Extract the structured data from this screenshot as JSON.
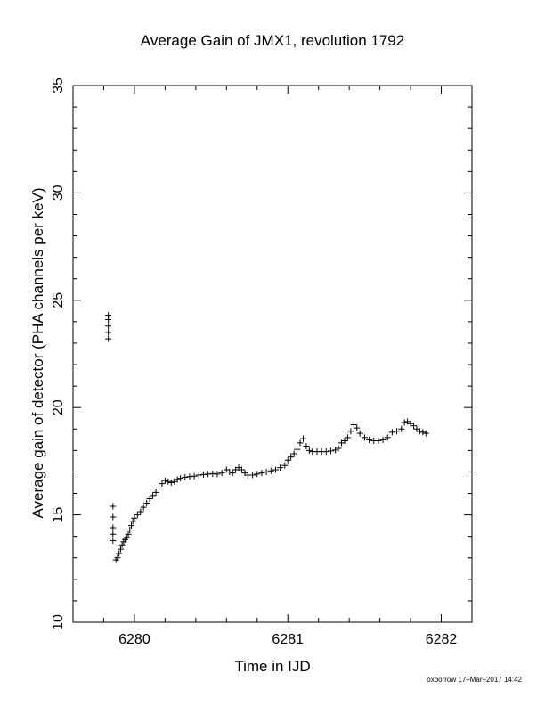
{
  "footer": {
    "stamp": "oxborrow 17–Mar–2017 14:42"
  },
  "chart_data": {
    "type": "scatter",
    "title": "Average Gain of JMX1, revolution 1792",
    "xlabel": "Time in IJD",
    "ylabel": "Average gain of detector (PHA channels per keV)",
    "xlim": [
      6279.6,
      6282.2
    ],
    "ylim": [
      10,
      35
    ],
    "xticks": [
      6280,
      6281,
      6282
    ],
    "yticks": [
      10,
      15,
      20,
      25,
      30,
      35
    ],
    "marker": "+",
    "grid": false,
    "color": "#000000",
    "points": [
      [
        6279.83,
        24.3
      ],
      [
        6279.83,
        24.1
      ],
      [
        6279.83,
        23.8
      ],
      [
        6279.83,
        23.5
      ],
      [
        6279.83,
        23.2
      ],
      [
        6279.86,
        15.4
      ],
      [
        6279.86,
        14.9
      ],
      [
        6279.86,
        14.4
      ],
      [
        6279.86,
        14.1
      ],
      [
        6279.86,
        13.8
      ],
      [
        6279.88,
        12.9
      ],
      [
        6279.89,
        13.0
      ],
      [
        6279.9,
        13.2
      ],
      [
        6279.91,
        13.4
      ],
      [
        6279.92,
        13.6
      ],
      [
        6279.93,
        13.75
      ],
      [
        6279.94,
        13.85
      ],
      [
        6279.95,
        13.95
      ],
      [
        6279.96,
        14.1
      ],
      [
        6279.97,
        14.3
      ],
      [
        6279.98,
        14.5
      ],
      [
        6279.99,
        14.7
      ],
      [
        6280.0,
        14.85
      ],
      [
        6280.02,
        15.0
      ],
      [
        6280.04,
        15.15
      ],
      [
        6280.06,
        15.35
      ],
      [
        6280.08,
        15.55
      ],
      [
        6280.1,
        15.75
      ],
      [
        6280.12,
        15.9
      ],
      [
        6280.14,
        16.05
      ],
      [
        6280.16,
        16.25
      ],
      [
        6280.18,
        16.45
      ],
      [
        6280.2,
        16.6
      ],
      [
        6280.22,
        16.55
      ],
      [
        6280.24,
        16.5
      ],
      [
        6280.26,
        16.55
      ],
      [
        6280.28,
        16.65
      ],
      [
        6280.3,
        16.7
      ],
      [
        6280.33,
        16.75
      ],
      [
        6280.36,
        16.78
      ],
      [
        6280.39,
        16.8
      ],
      [
        6280.42,
        16.85
      ],
      [
        6280.45,
        16.88
      ],
      [
        6280.48,
        16.9
      ],
      [
        6280.51,
        16.92
      ],
      [
        6280.54,
        16.9
      ],
      [
        6280.57,
        16.95
      ],
      [
        6280.6,
        17.1
      ],
      [
        6280.62,
        17.0
      ],
      [
        6280.64,
        16.95
      ],
      [
        6280.66,
        17.1
      ],
      [
        6280.68,
        17.2
      ],
      [
        6280.7,
        17.1
      ],
      [
        6280.72,
        16.95
      ],
      [
        6280.74,
        16.85
      ],
      [
        6280.77,
        16.85
      ],
      [
        6280.8,
        16.9
      ],
      [
        6280.83,
        16.95
      ],
      [
        6280.86,
        17.0
      ],
      [
        6280.89,
        17.05
      ],
      [
        6280.92,
        17.1
      ],
      [
        6280.95,
        17.2
      ],
      [
        6280.98,
        17.3
      ],
      [
        6281.0,
        17.55
      ],
      [
        6281.02,
        17.7
      ],
      [
        6281.04,
        17.85
      ],
      [
        6281.06,
        18.05
      ],
      [
        6281.08,
        18.35
      ],
      [
        6281.1,
        18.55
      ],
      [
        6281.12,
        18.2
      ],
      [
        6281.14,
        18.0
      ],
      [
        6281.16,
        17.95
      ],
      [
        6281.19,
        17.95
      ],
      [
        6281.22,
        17.95
      ],
      [
        6281.25,
        17.95
      ],
      [
        6281.28,
        17.98
      ],
      [
        6281.31,
        18.02
      ],
      [
        6281.33,
        18.1
      ],
      [
        6281.35,
        18.35
      ],
      [
        6281.37,
        18.45
      ],
      [
        6281.39,
        18.6
      ],
      [
        6281.41,
        18.9
      ],
      [
        6281.43,
        19.2
      ],
      [
        6281.45,
        19.05
      ],
      [
        6281.47,
        18.8
      ],
      [
        6281.5,
        18.6
      ],
      [
        6281.53,
        18.5
      ],
      [
        6281.56,
        18.45
      ],
      [
        6281.59,
        18.45
      ],
      [
        6281.62,
        18.5
      ],
      [
        6281.65,
        18.6
      ],
      [
        6281.68,
        18.85
      ],
      [
        6281.71,
        18.9
      ],
      [
        6281.74,
        19.0
      ],
      [
        6281.76,
        19.3
      ],
      [
        6281.78,
        19.35
      ],
      [
        6281.8,
        19.25
      ],
      [
        6281.82,
        19.15
      ],
      [
        6281.84,
        19.0
      ],
      [
        6281.86,
        18.9
      ],
      [
        6281.88,
        18.85
      ],
      [
        6281.9,
        18.8
      ]
    ]
  }
}
